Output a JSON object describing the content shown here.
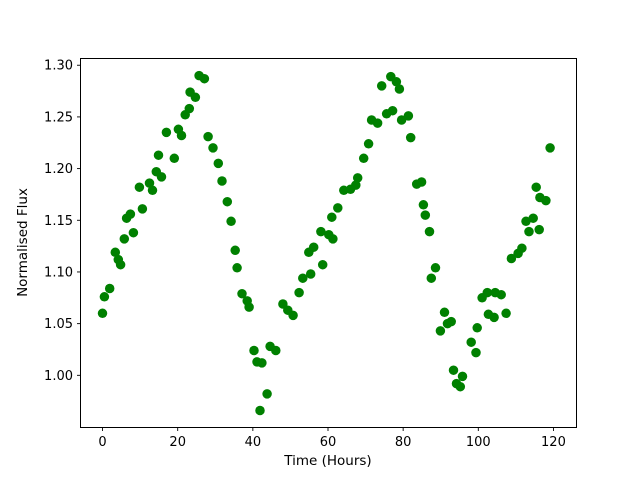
{
  "figure": {
    "background": "#ffffff",
    "axes_edge_color": "#000000",
    "tick_color": "#000000"
  },
  "chart_data": {
    "type": "scatter",
    "title": "",
    "xlabel": "Time (Hours)",
    "ylabel": "Normalised Flux",
    "marker_color": "#008000",
    "marker_diameter_px": 9.5,
    "grid": false,
    "legend": null,
    "xlim": [
      -6,
      126
    ],
    "ylim": [
      0.95,
      1.307
    ],
    "xticks": [
      0,
      20,
      40,
      60,
      80,
      100,
      120
    ],
    "xticklabels": [
      "0",
      "20",
      "40",
      "60",
      "80",
      "100",
      "120"
    ],
    "yticks": [
      1.0,
      1.05,
      1.1,
      1.15,
      1.2,
      1.25,
      1.3
    ],
    "yticklabels": [
      "1.00",
      "1.05",
      "1.10",
      "1.15",
      "1.20",
      "1.25",
      "1.30"
    ],
    "points": [
      [
        0.0,
        1.06
      ],
      [
        0.5,
        1.076
      ],
      [
        1.9,
        1.084
      ],
      [
        3.4,
        1.119
      ],
      [
        4.2,
        1.112
      ],
      [
        4.8,
        1.107
      ],
      [
        5.8,
        1.132
      ],
      [
        6.4,
        1.152
      ],
      [
        7.4,
        1.156
      ],
      [
        8.2,
        1.138
      ],
      [
        9.8,
        1.182
      ],
      [
        10.6,
        1.161
      ],
      [
        12.5,
        1.186
      ],
      [
        13.3,
        1.179
      ],
      [
        14.3,
        1.197
      ],
      [
        14.9,
        1.213
      ],
      [
        15.7,
        1.192
      ],
      [
        17.0,
        1.235
      ],
      [
        19.1,
        1.21
      ],
      [
        20.2,
        1.238
      ],
      [
        21.0,
        1.232
      ],
      [
        22.0,
        1.252
      ],
      [
        23.1,
        1.258
      ],
      [
        23.3,
        1.274
      ],
      [
        24.7,
        1.269
      ],
      [
        25.7,
        1.29
      ],
      [
        27.1,
        1.287
      ],
      [
        28.1,
        1.231
      ],
      [
        29.4,
        1.22
      ],
      [
        30.8,
        1.205
      ],
      [
        31.8,
        1.188
      ],
      [
        33.2,
        1.168
      ],
      [
        34.2,
        1.149
      ],
      [
        35.3,
        1.121
      ],
      [
        35.8,
        1.104
      ],
      [
        37.1,
        1.079
      ],
      [
        38.5,
        1.072
      ],
      [
        39.0,
        1.066
      ],
      [
        40.3,
        1.024
      ],
      [
        41.1,
        1.013
      ],
      [
        41.9,
        0.966
      ],
      [
        42.4,
        1.012
      ],
      [
        43.8,
        0.982
      ],
      [
        44.6,
        1.028
      ],
      [
        46.1,
        1.024
      ],
      [
        48.0,
        1.069
      ],
      [
        49.3,
        1.063
      ],
      [
        50.7,
        1.058
      ],
      [
        52.3,
        1.08
      ],
      [
        53.3,
        1.094
      ],
      [
        54.9,
        1.119
      ],
      [
        55.4,
        1.098
      ],
      [
        56.2,
        1.124
      ],
      [
        58.1,
        1.139
      ],
      [
        58.6,
        1.107
      ],
      [
        60.2,
        1.136
      ],
      [
        61.0,
        1.153
      ],
      [
        61.3,
        1.132
      ],
      [
        62.6,
        1.162
      ],
      [
        64.2,
        1.179
      ],
      [
        66.0,
        1.18
      ],
      [
        67.4,
        1.184
      ],
      [
        67.9,
        1.191
      ],
      [
        69.5,
        1.21
      ],
      [
        70.8,
        1.224
      ],
      [
        71.6,
        1.247
      ],
      [
        73.2,
        1.244
      ],
      [
        74.3,
        1.28
      ],
      [
        75.6,
        1.253
      ],
      [
        76.7,
        1.289
      ],
      [
        77.2,
        1.256
      ],
      [
        78.2,
        1.284
      ],
      [
        79.0,
        1.277
      ],
      [
        79.6,
        1.247
      ],
      [
        81.4,
        1.251
      ],
      [
        82.0,
        1.23
      ],
      [
        83.6,
        1.185
      ],
      [
        84.9,
        1.187
      ],
      [
        85.4,
        1.165
      ],
      [
        85.9,
        1.155
      ],
      [
        87.0,
        1.139
      ],
      [
        87.5,
        1.094
      ],
      [
        88.6,
        1.104
      ],
      [
        89.9,
        1.043
      ],
      [
        91.0,
        1.061
      ],
      [
        91.8,
        1.05
      ],
      [
        92.8,
        1.052
      ],
      [
        93.4,
        1.005
      ],
      [
        94.2,
        0.992
      ],
      [
        95.2,
        0.989
      ],
      [
        95.8,
        0.999
      ],
      [
        98.1,
        1.032
      ],
      [
        99.4,
        1.022
      ],
      [
        99.7,
        1.046
      ],
      [
        101.0,
        1.075
      ],
      [
        102.4,
        1.08
      ],
      [
        102.7,
        1.059
      ],
      [
        104.2,
        1.056
      ],
      [
        104.5,
        1.08
      ],
      [
        106.1,
        1.078
      ],
      [
        107.4,
        1.06
      ],
      [
        108.8,
        1.113
      ],
      [
        110.6,
        1.118
      ],
      [
        111.6,
        1.123
      ],
      [
        112.7,
        1.149
      ],
      [
        113.5,
        1.139
      ],
      [
        114.6,
        1.152
      ],
      [
        115.4,
        1.182
      ],
      [
        116.2,
        1.141
      ],
      [
        116.4,
        1.172
      ],
      [
        118.0,
        1.169
      ],
      [
        119.1,
        1.22
      ]
    ]
  }
}
